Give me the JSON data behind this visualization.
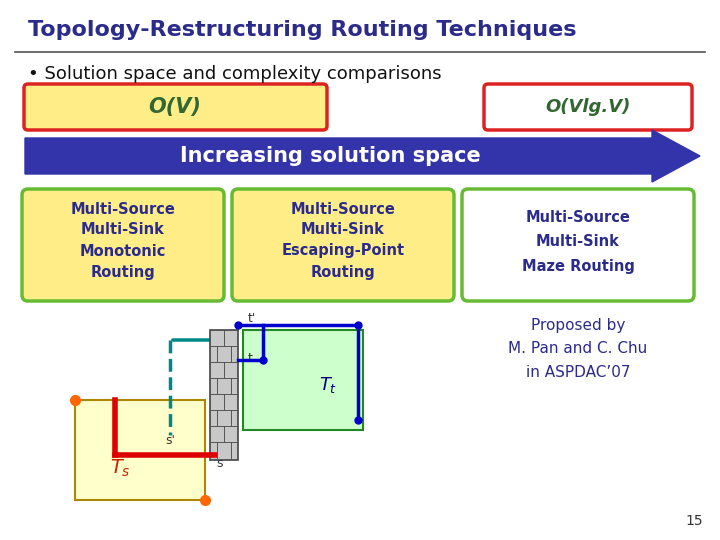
{
  "title": "Topology-Restructuring Routing Techniques",
  "title_color": "#2B2B8B",
  "title_fontsize": 16,
  "bullet_text": "Solution space and complexity comparisons",
  "bullet_fontsize": 13,
  "box1_text": "O(V)",
  "box2_text": "O(Vlg.V)",
  "arrow_text": "Increasing solution space",
  "card1_lines": [
    "Multi-Source",
    "Multi-Sink",
    "Monotonic",
    "Routing"
  ],
  "card2_lines": [
    "Multi-Source",
    "Multi-Sink",
    "Escaping-Point",
    "Routing"
  ],
  "card3_lines": [
    "Multi-Source",
    "Multi-Sink",
    "Maze Routing"
  ],
  "proposed_text": "Proposed by\nM. Pan and C. Chu\nin ASPDAC’07",
  "page_number": "15",
  "bg_color": "#FFFFFF",
  "title_underline_color": "#555555",
  "box1_fill": "#FFEE88",
  "box1_border": "#DD2222",
  "box2_fill": "#FFFFFF",
  "box2_border": "#DD2222",
  "arrow_fill": "#3333AA",
  "arrow_text_color": "#FFFFFF",
  "card_fill": "#FFEE88",
  "card_border": "#66BB33",
  "card_text_color": "#2B2B8B",
  "card3_fill": "#FFFFFF",
  "proposed_text_color": "#2B2B8B",
  "box_text_color": "#336633"
}
